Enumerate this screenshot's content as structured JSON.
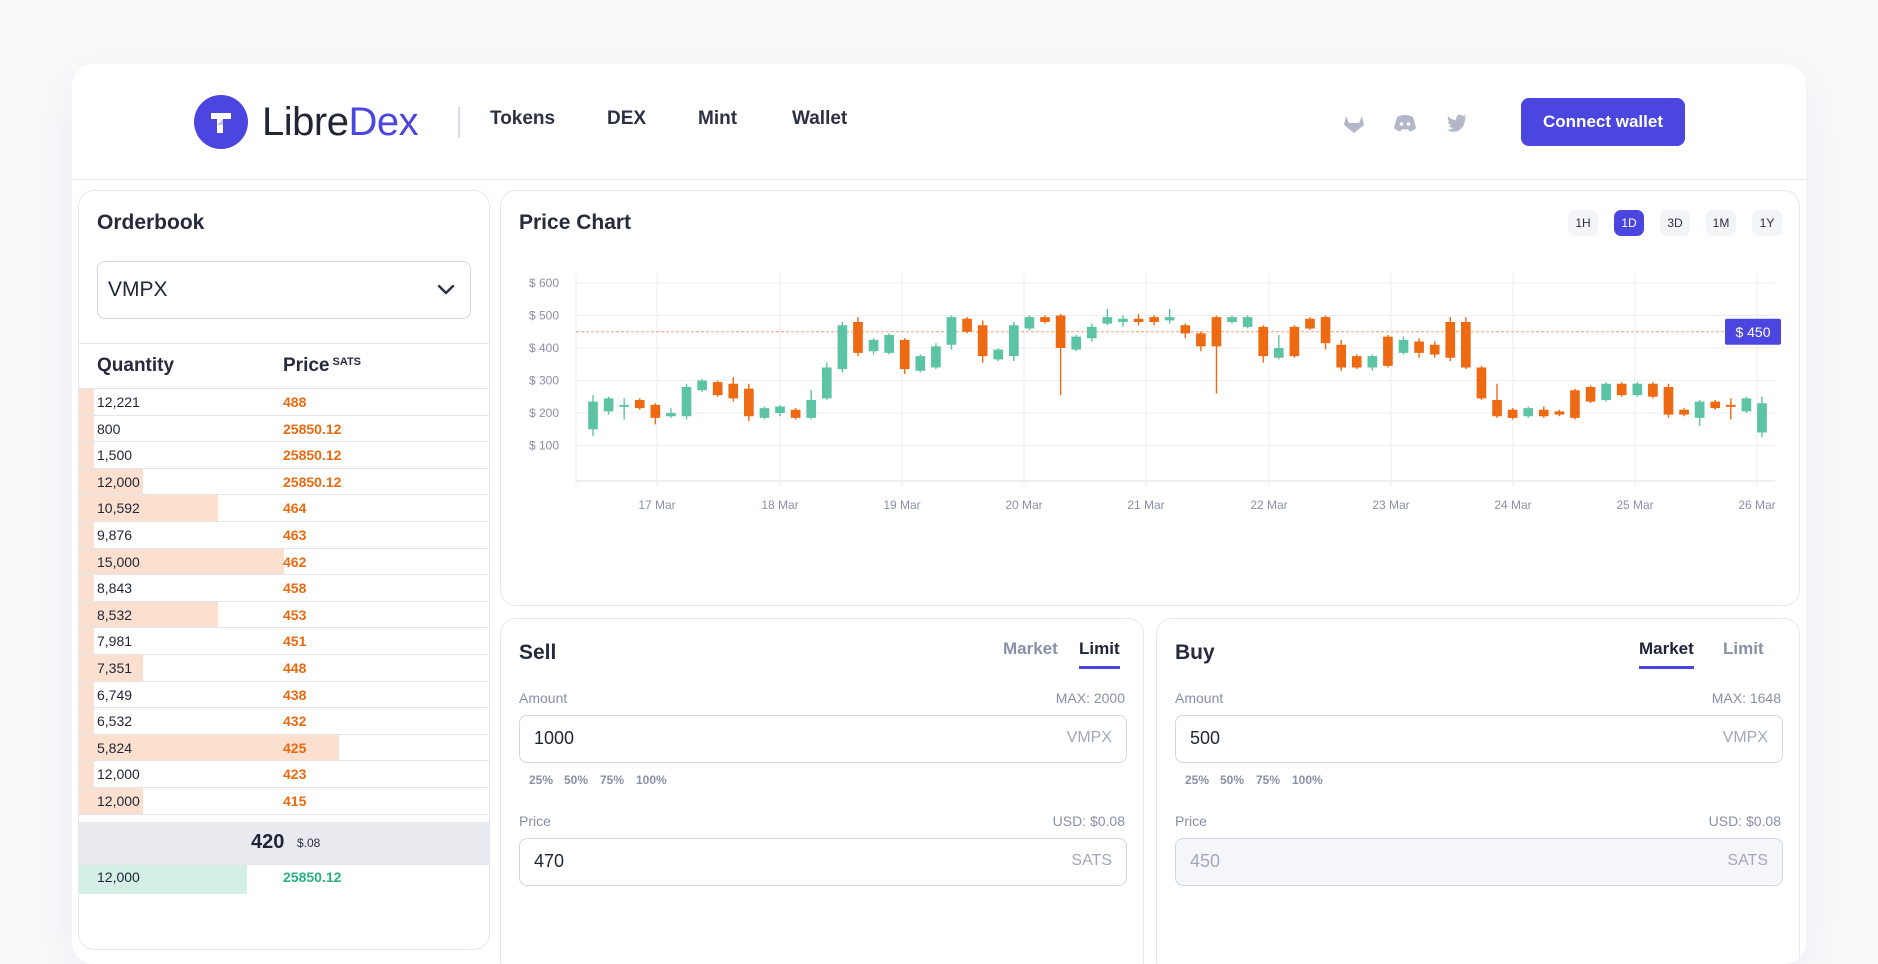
{
  "brand": {
    "name_part1": "Libre",
    "name_part2": "Dex",
    "accent": "#4c46e0"
  },
  "nav": [
    "Tokens",
    "DEX",
    "Mint",
    "Wallet"
  ],
  "social_icons": [
    "gitlab-icon",
    "discord-icon",
    "twitter-icon"
  ],
  "connect_label": "Connect wallet",
  "orderbook": {
    "title": "Orderbook",
    "token": "VMPX",
    "col_quantity": "Quantity",
    "col_price": "Price",
    "col_price_unit": "SATS",
    "sell_rows": [
      {
        "q": "12,221",
        "p": "488",
        "depth": 0.037
      },
      {
        "q": "800",
        "p": "25850.12",
        "depth": 0.037
      },
      {
        "q": "1,500",
        "p": "25850.12",
        "depth": 0.037
      },
      {
        "q": "12,000",
        "p": "25850.12",
        "depth": 0.156
      },
      {
        "q": "10,592",
        "p": "464",
        "depth": 0.34
      },
      {
        "q": "9,876",
        "p": "463",
        "depth": 0.037
      },
      {
        "q": "15,000",
        "p": "462",
        "depth": 0.5
      },
      {
        "q": "8,843",
        "p": "458",
        "depth": 0.037
      },
      {
        "q": "8,532",
        "p": "453",
        "depth": 0.34
      },
      {
        "q": "7,981",
        "p": "451",
        "depth": 0.037
      },
      {
        "q": "7,351",
        "p": "448",
        "depth": 0.156
      },
      {
        "q": "6,749",
        "p": "438",
        "depth": 0.037
      },
      {
        "q": "6,532",
        "p": "432",
        "depth": 0.037
      },
      {
        "q": "5,824",
        "p": "425",
        "depth": 0.634
      },
      {
        "q": "12,000",
        "p": "423",
        "depth": 0.037
      },
      {
        "q": "12,000",
        "p": "415",
        "depth": 0.156
      }
    ],
    "mid_price": "420",
    "mid_usd": "$.08",
    "buy_row": {
      "q": "12,000",
      "p": "25850.12"
    }
  },
  "chart": {
    "title": "Price Chart",
    "timeframes": [
      "1H",
      "1D",
      "3D",
      "1M",
      "1Y"
    ],
    "active_timeframe": "1D",
    "current_price_label": "$ 450",
    "up_color": "#5cc4a4",
    "down_color": "#ed6a12"
  },
  "chart_data": {
    "type": "candlestick",
    "x_ticks": [
      "17 Mar",
      "18 Mar",
      "19 Mar",
      "20 Mar",
      "21 Mar",
      "22 Mar",
      "23 Mar",
      "24 Mar",
      "25 Mar",
      "26 Mar"
    ],
    "y_ticks": [
      "$ 600",
      "$ 500",
      "$ 400",
      "$ 300",
      "$ 200",
      "$ 100"
    ],
    "ylim": [
      0,
      600
    ],
    "reference_line": 450,
    "candles": [
      {
        "o": 150,
        "c": 235,
        "h": 255,
        "l": 130
      },
      {
        "o": 205,
        "c": 245,
        "h": 250,
        "l": 195
      },
      {
        "o": 220,
        "c": 225,
        "h": 245,
        "l": 180
      },
      {
        "o": 240,
        "c": 215,
        "h": 245,
        "l": 210
      },
      {
        "o": 225,
        "c": 185,
        "h": 230,
        "l": 165
      },
      {
        "o": 190,
        "c": 200,
        "h": 215,
        "l": 185
      },
      {
        "o": 190,
        "c": 280,
        "h": 290,
        "l": 180
      },
      {
        "o": 270,
        "c": 300,
        "h": 305,
        "l": 265
      },
      {
        "o": 295,
        "c": 255,
        "h": 300,
        "l": 250
      },
      {
        "o": 290,
        "c": 245,
        "h": 310,
        "l": 235
      },
      {
        "o": 275,
        "c": 190,
        "h": 290,
        "l": 175
      },
      {
        "o": 185,
        "c": 215,
        "h": 220,
        "l": 180
      },
      {
        "o": 200,
        "c": 220,
        "h": 225,
        "l": 190
      },
      {
        "o": 210,
        "c": 185,
        "h": 215,
        "l": 180
      },
      {
        "o": 185,
        "c": 240,
        "h": 270,
        "l": 180
      },
      {
        "o": 245,
        "c": 340,
        "h": 355,
        "l": 240
      },
      {
        "o": 335,
        "c": 470,
        "h": 480,
        "l": 325
      },
      {
        "o": 480,
        "c": 385,
        "h": 495,
        "l": 375
      },
      {
        "o": 390,
        "c": 425,
        "h": 430,
        "l": 380
      },
      {
        "o": 385,
        "c": 440,
        "h": 445,
        "l": 380
      },
      {
        "o": 425,
        "c": 335,
        "h": 430,
        "l": 320
      },
      {
        "o": 330,
        "c": 375,
        "h": 380,
        "l": 325
      },
      {
        "o": 340,
        "c": 405,
        "h": 415,
        "l": 335
      },
      {
        "o": 410,
        "c": 495,
        "h": 500,
        "l": 395
      },
      {
        "o": 490,
        "c": 450,
        "h": 495,
        "l": 445
      },
      {
        "o": 470,
        "c": 375,
        "h": 485,
        "l": 355
      },
      {
        "o": 365,
        "c": 395,
        "h": 400,
        "l": 360
      },
      {
        "o": 375,
        "c": 470,
        "h": 480,
        "l": 360
      },
      {
        "o": 460,
        "c": 495,
        "h": 500,
        "l": 455
      },
      {
        "o": 495,
        "c": 480,
        "h": 500,
        "l": 475
      },
      {
        "o": 500,
        "c": 400,
        "h": 505,
        "l": 255
      },
      {
        "o": 395,
        "c": 435,
        "h": 440,
        "l": 390
      },
      {
        "o": 430,
        "c": 465,
        "h": 475,
        "l": 420
      },
      {
        "o": 475,
        "c": 495,
        "h": 520,
        "l": 470
      },
      {
        "o": 480,
        "c": 490,
        "h": 500,
        "l": 465
      },
      {
        "o": 490,
        "c": 480,
        "h": 505,
        "l": 470
      },
      {
        "o": 495,
        "c": 480,
        "h": 500,
        "l": 470
      },
      {
        "o": 485,
        "c": 495,
        "h": 520,
        "l": 475
      },
      {
        "o": 470,
        "c": 445,
        "h": 475,
        "l": 430
      },
      {
        "o": 445,
        "c": 405,
        "h": 450,
        "l": 390
      },
      {
        "o": 495,
        "c": 405,
        "h": 500,
        "l": 260
      },
      {
        "o": 480,
        "c": 495,
        "h": 500,
        "l": 475
      },
      {
        "o": 465,
        "c": 495,
        "h": 500,
        "l": 460
      },
      {
        "o": 465,
        "c": 375,
        "h": 470,
        "l": 355
      },
      {
        "o": 370,
        "c": 400,
        "h": 440,
        "l": 365
      },
      {
        "o": 465,
        "c": 375,
        "h": 470,
        "l": 370
      },
      {
        "o": 490,
        "c": 460,
        "h": 495,
        "l": 455
      },
      {
        "o": 495,
        "c": 415,
        "h": 500,
        "l": 395
      },
      {
        "o": 410,
        "c": 340,
        "h": 425,
        "l": 330
      },
      {
        "o": 375,
        "c": 340,
        "h": 380,
        "l": 335
      },
      {
        "o": 340,
        "c": 375,
        "h": 380,
        "l": 330
      },
      {
        "o": 435,
        "c": 345,
        "h": 440,
        "l": 340
      },
      {
        "o": 385,
        "c": 425,
        "h": 435,
        "l": 380
      },
      {
        "o": 420,
        "c": 385,
        "h": 430,
        "l": 370
      },
      {
        "o": 410,
        "c": 380,
        "h": 420,
        "l": 370
      },
      {
        "o": 480,
        "c": 370,
        "h": 495,
        "l": 360
      },
      {
        "o": 480,
        "c": 340,
        "h": 495,
        "l": 335
      },
      {
        "o": 340,
        "c": 245,
        "h": 345,
        "l": 240
      },
      {
        "o": 240,
        "c": 190,
        "h": 290,
        "l": 185
      },
      {
        "o": 210,
        "c": 185,
        "h": 215,
        "l": 180
      },
      {
        "o": 190,
        "c": 215,
        "h": 220,
        "l": 185
      },
      {
        "o": 210,
        "c": 190,
        "h": 220,
        "l": 185
      },
      {
        "o": 205,
        "c": 195,
        "h": 210,
        "l": 190
      },
      {
        "o": 270,
        "c": 185,
        "h": 275,
        "l": 180
      },
      {
        "o": 280,
        "c": 235,
        "h": 285,
        "l": 230
      },
      {
        "o": 240,
        "c": 290,
        "h": 295,
        "l": 235
      },
      {
        "o": 290,
        "c": 255,
        "h": 295,
        "l": 250
      },
      {
        "o": 255,
        "c": 290,
        "h": 295,
        "l": 250
      },
      {
        "o": 290,
        "c": 250,
        "h": 295,
        "l": 245
      },
      {
        "o": 280,
        "c": 195,
        "h": 290,
        "l": 185
      },
      {
        "o": 210,
        "c": 195,
        "h": 215,
        "l": 190
      },
      {
        "o": 185,
        "c": 235,
        "h": 240,
        "l": 160
      },
      {
        "o": 235,
        "c": 215,
        "h": 240,
        "l": 210
      },
      {
        "o": 225,
        "c": 220,
        "h": 245,
        "l": 180
      },
      {
        "o": 205,
        "c": 245,
        "h": 250,
        "l": 200
      },
      {
        "o": 140,
        "c": 230,
        "h": 250,
        "l": 125
      }
    ]
  },
  "sell": {
    "title": "Sell",
    "tabs": [
      "Market",
      "Limit"
    ],
    "active_tab": "Limit",
    "amount_label": "Amount",
    "amount_max": "MAX: 2000",
    "amount_value": "1000",
    "amount_unit": "VMPX",
    "percentages": [
      "25%",
      "50%",
      "75%",
      "100%"
    ],
    "price_label": "Price",
    "price_usd": "USD: $0.08",
    "price_value": "470",
    "price_unit": "SATS"
  },
  "buy": {
    "title": "Buy",
    "tabs": [
      "Market",
      "Limit"
    ],
    "active_tab": "Market",
    "amount_label": "Amount",
    "amount_max": "MAX: 1648",
    "amount_value": "500",
    "amount_unit": "VMPX",
    "percentages": [
      "25%",
      "50%",
      "75%",
      "100%"
    ],
    "price_label": "Price",
    "price_usd": "USD: $0.08",
    "price_value": "450",
    "price_unit": "SATS"
  }
}
